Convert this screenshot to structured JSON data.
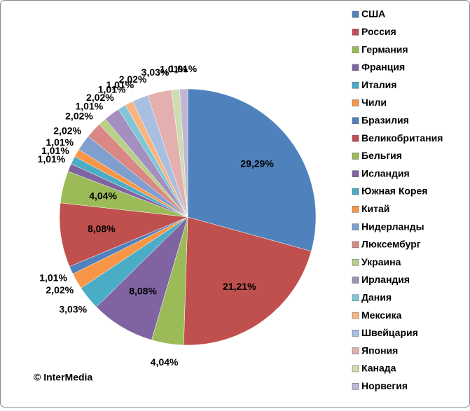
{
  "chart_data": {
    "type": "pie",
    "annotation": "© InterMedia",
    "categories": [
      "США",
      "Россия",
      "Германия",
      "Франция",
      "Италия",
      "Чили",
      "Бразилия",
      "Великобритания",
      "Бельгия",
      "Исландия",
      "Южная Корея",
      "Китай",
      "Нидерланды",
      "Люксембург",
      "Украина",
      "Ирландия",
      "Дания",
      "Мексика",
      "Швейцария",
      "Япония",
      "Канада",
      "Норвегия"
    ],
    "values": [
      29.29,
      21.21,
      4.04,
      8.08,
      3.03,
      2.02,
      1.01,
      8.08,
      4.04,
      1.01,
      1.01,
      1.01,
      2.02,
      2.02,
      1.01,
      2.02,
      1.01,
      1.01,
      2.02,
      3.03,
      1.01,
      1.01
    ],
    "value_labels": [
      "29,29%",
      "21,21%",
      "4,04%",
      "8,08%",
      "3,03%",
      "2,02%",
      "1,01%",
      "8,08%",
      "4,04%",
      "1,01%",
      "1,01%",
      "1,01%",
      "2,02%",
      "2,02%",
      "1,01%",
      "2,02%",
      "1,01%",
      "1,01%",
      "2,02%",
      "3,03%",
      "1,01%",
      "1,01%"
    ],
    "colors": [
      "#4f81bd",
      "#c0504d",
      "#9bbb59",
      "#8064a2",
      "#4bacc6",
      "#f79646",
      "#4f81bd",
      "#c0504d",
      "#9bbb59",
      "#8064a2",
      "#4bacc6",
      "#f79646",
      "#7f9fcf",
      "#d98886",
      "#b8d088",
      "#a48fc0",
      "#7fc6d9",
      "#f9b47f",
      "#a9bfe0",
      "#e3b0af",
      "#cdddb0",
      "#c2b6d6"
    ],
    "legend": "right"
  }
}
